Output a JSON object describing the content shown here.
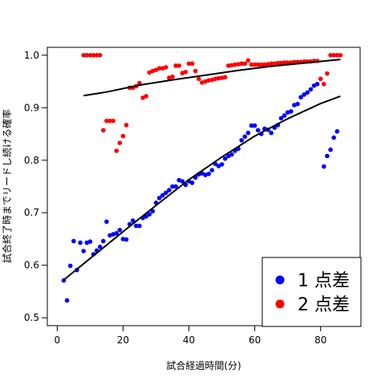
{
  "chart_data": {
    "type": "scatter",
    "title": "",
    "xlabel": "試合経過時間(分)",
    "ylabel": "試合終了時までリードし続ける確率",
    "xlim": [
      -3,
      92
    ],
    "ylim": [
      0.485,
      1.015
    ],
    "xticks": [
      0,
      20,
      40,
      60,
      80
    ],
    "yticks": [
      0.5,
      0.6,
      0.7,
      0.8,
      0.9,
      1.0
    ],
    "xtick_labels": [
      "0",
      "20",
      "40",
      "60",
      "80"
    ],
    "ytick_labels": [
      "0.5",
      "0.6",
      "0.7",
      "0.8",
      "0.9",
      "1.0"
    ],
    "legend_position": "bottom-right",
    "series": [
      {
        "name": "1 点差",
        "color": "#0000ff",
        "points": [
          [
            2,
            0.571
          ],
          [
            3,
            0.533
          ],
          [
            4,
            0.599
          ],
          [
            5,
            0.646
          ],
          [
            6,
            0.591
          ],
          [
            7,
            0.643
          ],
          [
            8,
            0.627
          ],
          [
            9,
            0.643
          ],
          [
            10,
            0.645
          ],
          [
            11,
            0.621
          ],
          [
            12,
            0.628
          ],
          [
            13,
            0.635
          ],
          [
            14,
            0.646
          ],
          [
            15,
            0.683
          ],
          [
            16,
            0.657
          ],
          [
            17,
            0.659
          ],
          [
            18,
            0.661
          ],
          [
            19,
            0.667
          ],
          [
            20,
            0.65
          ],
          [
            21,
            0.649
          ],
          [
            22,
            0.678
          ],
          [
            23,
            0.685
          ],
          [
            24,
            0.675
          ],
          [
            25,
            0.675
          ],
          [
            26,
            0.69
          ],
          [
            27,
            0.693
          ],
          [
            28,
            0.697
          ],
          [
            29,
            0.703
          ],
          [
            30,
            0.719
          ],
          [
            31,
            0.728
          ],
          [
            32,
            0.733
          ],
          [
            33,
            0.738
          ],
          [
            34,
            0.743
          ],
          [
            35,
            0.75
          ],
          [
            36,
            0.75
          ],
          [
            37,
            0.762
          ],
          [
            38,
            0.76
          ],
          [
            39,
            0.753
          ],
          [
            40,
            0.76
          ],
          [
            41,
            0.757
          ],
          [
            42,
            0.767
          ],
          [
            43,
            0.773
          ],
          [
            44,
            0.775
          ],
          [
            45,
            0.772
          ],
          [
            46,
            0.774
          ],
          [
            47,
            0.781
          ],
          [
            48,
            0.793
          ],
          [
            49,
            0.789
          ],
          [
            50,
            0.792
          ],
          [
            51,
            0.803
          ],
          [
            52,
            0.808
          ],
          [
            53,
            0.811
          ],
          [
            54,
            0.818
          ],
          [
            55,
            0.822
          ],
          [
            56,
            0.838
          ],
          [
            57,
            0.845
          ],
          [
            58,
            0.852
          ],
          [
            59,
            0.866
          ],
          [
            60,
            0.866
          ],
          [
            61,
            0.857
          ],
          [
            62,
            0.85
          ],
          [
            63,
            0.86
          ],
          [
            64,
            0.858
          ],
          [
            65,
            0.852
          ],
          [
            66,
            0.862
          ],
          [
            67,
            0.867
          ],
          [
            68,
            0.88
          ],
          [
            69,
            0.885
          ],
          [
            70,
            0.891
          ],
          [
            71,
            0.893
          ],
          [
            72,
            0.905
          ],
          [
            73,
            0.907
          ],
          [
            74,
            0.92
          ],
          [
            75,
            0.925
          ],
          [
            76,
            0.929
          ],
          [
            77,
            0.935
          ],
          [
            78,
            0.942
          ],
          [
            79,
            0.945
          ],
          [
            80,
            0.955
          ],
          [
            81,
            0.788
          ],
          [
            82,
            0.808
          ],
          [
            83,
            0.82
          ],
          [
            84,
            0.843
          ],
          [
            85,
            0.855
          ]
        ],
        "fit": [
          [
            2,
            0.572
          ],
          [
            10,
            0.613
          ],
          [
            20,
            0.664
          ],
          [
            30,
            0.714
          ],
          [
            40,
            0.763
          ],
          [
            50,
            0.806
          ],
          [
            60,
            0.846
          ],
          [
            70,
            0.879
          ],
          [
            80,
            0.908
          ],
          [
            86,
            0.922
          ]
        ]
      },
      {
        "name": "2 点差",
        "color": "#ff0000",
        "points": [
          [
            8,
            1.0
          ],
          [
            9,
            1.0
          ],
          [
            10,
            1.0
          ],
          [
            11,
            1.0
          ],
          [
            12,
            1.0
          ],
          [
            13,
            1.0
          ],
          [
            14,
            0.857
          ],
          [
            15,
            0.875
          ],
          [
            16,
            0.875
          ],
          [
            17,
            0.875
          ],
          [
            18,
            0.818
          ],
          [
            19,
            0.833
          ],
          [
            20,
            0.846
          ],
          [
            21,
            0.867
          ],
          [
            22,
            0.938
          ],
          [
            23,
            0.938
          ],
          [
            24,
            0.941
          ],
          [
            25,
            0.947
          ],
          [
            26,
            0.919
          ],
          [
            27,
            0.922
          ],
          [
            28,
            0.967
          ],
          [
            29,
            0.97
          ],
          [
            30,
            0.972
          ],
          [
            31,
            0.975
          ],
          [
            32,
            0.975
          ],
          [
            33,
            0.977
          ],
          [
            34,
            0.957
          ],
          [
            35,
            0.959
          ],
          [
            36,
            0.98
          ],
          [
            37,
            0.98
          ],
          [
            38,
            0.966
          ],
          [
            39,
            0.968
          ],
          [
            40,
            0.984
          ],
          [
            41,
            0.984
          ],
          [
            42,
            0.97
          ],
          [
            43,
            0.955
          ],
          [
            44,
            0.948
          ],
          [
            45,
            0.95
          ],
          [
            46,
            0.952
          ],
          [
            47,
            0.953
          ],
          [
            48,
            0.955
          ],
          [
            49,
            0.956
          ],
          [
            50,
            0.957
          ],
          [
            51,
            0.958
          ],
          [
            52,
            0.98
          ],
          [
            53,
            0.981
          ],
          [
            54,
            0.982
          ],
          [
            55,
            0.983
          ],
          [
            56,
            0.984
          ],
          [
            57,
            0.984
          ],
          [
            58,
            0.99
          ],
          [
            59,
            0.982
          ],
          [
            60,
            0.982
          ],
          [
            61,
            0.982
          ],
          [
            62,
            0.982
          ],
          [
            63,
            0.982
          ],
          [
            64,
            0.983
          ],
          [
            65,
            0.984
          ],
          [
            66,
            0.984
          ],
          [
            67,
            0.985
          ],
          [
            68,
            0.985
          ],
          [
            69,
            0.986
          ],
          [
            70,
            0.986
          ],
          [
            71,
            0.986
          ],
          [
            72,
            0.987
          ],
          [
            73,
            0.987
          ],
          [
            74,
            0.987
          ],
          [
            75,
            0.988
          ],
          [
            76,
            0.988
          ],
          [
            77,
            0.988
          ],
          [
            78,
            0.989
          ],
          [
            79,
            0.989
          ],
          [
            80,
            0.955
          ],
          [
            81,
            0.945
          ],
          [
            82,
            0.965
          ],
          [
            83,
            1.0
          ],
          [
            84,
            1.0
          ],
          [
            85,
            1.0
          ],
          [
            86,
            1.0
          ]
        ],
        "fit": [
          [
            8,
            0.923
          ],
          [
            15,
            0.93
          ],
          [
            25,
            0.943
          ],
          [
            35,
            0.953
          ],
          [
            45,
            0.962
          ],
          [
            55,
            0.971
          ],
          [
            65,
            0.979
          ],
          [
            75,
            0.985
          ],
          [
            86,
            0.992
          ]
        ]
      }
    ]
  }
}
